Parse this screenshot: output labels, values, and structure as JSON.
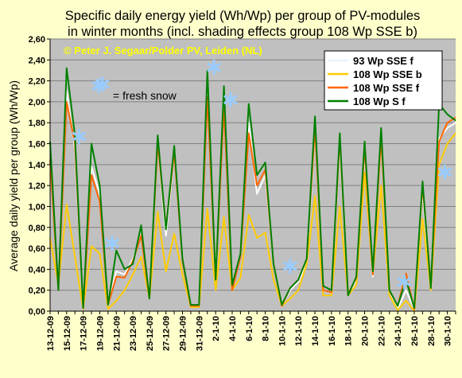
{
  "chart_data": {
    "type": "line",
    "title_lines": [
      "Specific daily energy yield (Wh/Wp) per group of PV-modules",
      "in winter months (incl. shading effects group 108 Wp SSE b)"
    ],
    "copyright": "© Peter J. Segaar/Polder PV, Leiden (NL)",
    "ylabel": "Average daily yield per group (Wh/Wp)",
    "xlabel": "",
    "ylim": [
      0,
      2.6
    ],
    "ytick_step": 0.2,
    "y_ticks": [
      "0,00",
      "0,20",
      "0,40",
      "0,60",
      "0,80",
      "1,00",
      "1,20",
      "1,40",
      "1,60",
      "1,80",
      "2,00",
      "2,20",
      "2,40",
      "2,60"
    ],
    "grid": true,
    "legend_position": "top-right",
    "x": [
      "13-12-09",
      "14-12-09",
      "15-12-09",
      "16-12-09",
      "17-12-09",
      "18-12-09",
      "19-12-09",
      "20-12-09",
      "21-12-09",
      "22-12-09",
      "23-12-09",
      "24-12-09",
      "25-12-09",
      "26-12-09",
      "27-12-09",
      "28-12-09",
      "29-12-09",
      "30-12-09",
      "31-12-09",
      "1-1-10",
      "2-1-10",
      "3-1-10",
      "4-1-10",
      "5-1-10",
      "6-1-10",
      "7-1-10",
      "8-1-10",
      "9-1-10",
      "10-1-10",
      "11-1-10",
      "12-1-10",
      "13-1-10",
      "14-1-10",
      "15-1-10",
      "16-1-10",
      "17-1-10",
      "18-1-10",
      "19-1-10",
      "20-1-10",
      "21-1-10",
      "22-1-10",
      "23-1-10",
      "24-1-10",
      "25-1-10",
      "26-1-10",
      "27-1-10",
      "28-1-10",
      "29-1-10",
      "30-1-10",
      "31-1-10"
    ],
    "x_tick_labels": [
      "13-12-09",
      "15-12-09",
      "17-12-09",
      "19-12-09",
      "21-12-09",
      "23-12-09",
      "25-12-09",
      "27-12-09",
      "29-12-09",
      "31-12-09",
      "2-1-10",
      "4-1-10",
      "6-1-10",
      "8-1-10",
      "10-1-10",
      "12-1-10",
      "14-1-10",
      "16-1-10",
      "18-1-10",
      "20-1-10",
      "22-1-10",
      "24-1-10",
      "26-1-10",
      "28-1-10",
      "30-1-10"
    ],
    "series": [
      {
        "name": "93 Wp SSE f",
        "color": "#ffffff",
        "values": [
          1.55,
          0.2,
          2.1,
          1.55,
          0.03,
          1.38,
          1.12,
          0.05,
          0.38,
          0.35,
          0.5,
          0.72,
          0.12,
          1.6,
          0.72,
          1.52,
          0.5,
          0.05,
          0.05,
          2.15,
          0.35,
          2.0,
          0.22,
          0.52,
          1.8,
          1.12,
          1.3,
          0.45,
          0.05,
          0.2,
          0.28,
          0.45,
          1.72,
          0.2,
          0.18,
          1.6,
          0.15,
          0.3,
          1.5,
          0.33,
          1.62,
          0.2,
          0.02,
          0.2,
          0.02,
          1.15,
          0.2,
          1.65,
          1.75,
          1.8
        ]
      },
      {
        "name": "108 Wp SSE b",
        "color": "#ffcc00",
        "values": [
          0.7,
          0.25,
          1.02,
          0.52,
          0.02,
          0.62,
          0.55,
          0.02,
          0.1,
          0.2,
          0.35,
          0.52,
          0.12,
          0.95,
          0.38,
          0.74,
          0.35,
          0.04,
          0.04,
          0.98,
          0.2,
          0.9,
          0.2,
          0.32,
          0.92,
          0.7,
          0.75,
          0.3,
          0.05,
          0.12,
          0.2,
          0.45,
          1.1,
          0.15,
          0.15,
          1.0,
          0.15,
          0.25,
          1.32,
          0.35,
          1.2,
          0.15,
          0.01,
          0.1,
          0.0,
          0.88,
          0.2,
          1.4,
          1.6,
          1.7
        ]
      },
      {
        "name": "108 Wp SSE f",
        "color": "#ff6600",
        "values": [
          1.45,
          0.2,
          2.0,
          1.6,
          0.03,
          1.3,
          1.05,
          0.06,
          0.33,
          0.32,
          0.48,
          0.72,
          0.12,
          1.6,
          0.8,
          1.52,
          0.48,
          0.05,
          0.05,
          2.05,
          0.3,
          1.95,
          0.2,
          0.52,
          1.7,
          1.2,
          1.35,
          0.45,
          0.05,
          0.22,
          0.3,
          0.5,
          1.75,
          0.2,
          0.18,
          1.65,
          0.16,
          0.32,
          1.55,
          0.35,
          1.65,
          0.2,
          0.05,
          0.36,
          0.02,
          1.2,
          0.25,
          1.62,
          1.8,
          1.85
        ]
      },
      {
        "name": "108 Wp S f",
        "color": "#008000",
        "values": [
          1.62,
          0.2,
          2.32,
          1.68,
          0.03,
          1.6,
          1.2,
          0.06,
          0.58,
          0.4,
          0.45,
          0.82,
          0.12,
          1.68,
          0.78,
          1.58,
          0.5,
          0.06,
          0.06,
          2.3,
          0.3,
          2.15,
          0.25,
          0.55,
          1.98,
          1.3,
          1.42,
          0.45,
          0.06,
          0.22,
          0.3,
          0.5,
          1.86,
          0.24,
          0.2,
          1.7,
          0.15,
          0.33,
          1.62,
          0.38,
          1.75,
          0.2,
          0.05,
          0.3,
          0.03,
          1.24,
          0.22,
          1.98,
          1.88,
          1.82
        ]
      }
    ],
    "annotation_text": "= fresh snow",
    "snow_markers": [
      {
        "x": 3.5,
        "y": 1.67
      },
      {
        "x": 6.3,
        "y": 2.17
      },
      {
        "x": 7.5,
        "y": 0.65
      },
      {
        "x": 19.8,
        "y": 2.33
      },
      {
        "x": 21.8,
        "y": 2.02
      },
      {
        "x": 29.0,
        "y": 0.43
      },
      {
        "x": 42.8,
        "y": 0.28
      },
      {
        "x": 47.7,
        "y": 1.33
      }
    ],
    "colors": {
      "background": "#ffffcc",
      "plot_area": "#c0c0c0",
      "grid": "#808080",
      "copyright_text": "#ffff00",
      "snow": "#99ccff"
    }
  }
}
